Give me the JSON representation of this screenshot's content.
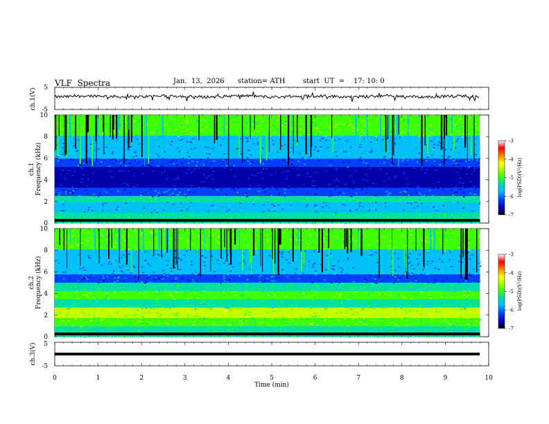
{
  "header": {
    "title": "VLF  Spectra",
    "date": "Jan.  13,  2026",
    "station": "station= ATH",
    "start": "start  UT  =    17: 10: 0"
  },
  "colors": {
    "waveform": "#000000",
    "colormap": [
      "#000000",
      "#0000aa",
      "#0040ff",
      "#00c0ff",
      "#00e0a0",
      "#40ff00",
      "#c0ff00",
      "#ffff00",
      "#ff8000",
      "#ff0000",
      "#ffffff"
    ]
  },
  "chart_data": [
    {
      "type": "line",
      "ylabel": "ch.1(V)",
      "ylim": [
        -5,
        5
      ],
      "y_ticks": [
        "5",
        "-5"
      ],
      "x_range": [
        0,
        10
      ],
      "data_end_min": 9.8
    },
    {
      "type": "heatmap",
      "ylabel": "Frequency  (kHz)",
      "channel": "ch.1",
      "ylim": [
        0,
        10
      ],
      "y_ticks": [
        "0",
        "2",
        "4",
        "6",
        "8",
        "10"
      ],
      "colorbar": {
        "label": "log(PSD)(V²/Hz)",
        "range": [
          -7,
          -3
        ],
        "ticks": [
          "-3",
          "-4",
          "-5",
          "-6",
          "-7"
        ]
      }
    },
    {
      "type": "heatmap",
      "ylabel": "Frequency  (kHz)",
      "channel": "ch.2",
      "ylim": [
        0,
        10
      ],
      "y_ticks": [
        "0",
        "2",
        "4",
        "6",
        "8",
        "10"
      ],
      "colorbar": {
        "label": "log(PSD)(V²/Hz)",
        "range": [
          -7,
          -3
        ],
        "ticks": [
          "-3",
          "-4",
          "-5",
          "-6",
          "-7"
        ]
      }
    },
    {
      "type": "line",
      "ylabel": "ch.3(V)",
      "ylim": [
        -5,
        5
      ],
      "y_ticks": [
        "5",
        "-5"
      ],
      "flat_value": 0
    }
  ],
  "xaxis": {
    "label": "Time  (min)",
    "range": [
      0,
      10
    ],
    "ticks": [
      "0",
      "1",
      "2",
      "3",
      "4",
      "5",
      "6",
      "7",
      "8",
      "9",
      "10"
    ]
  }
}
